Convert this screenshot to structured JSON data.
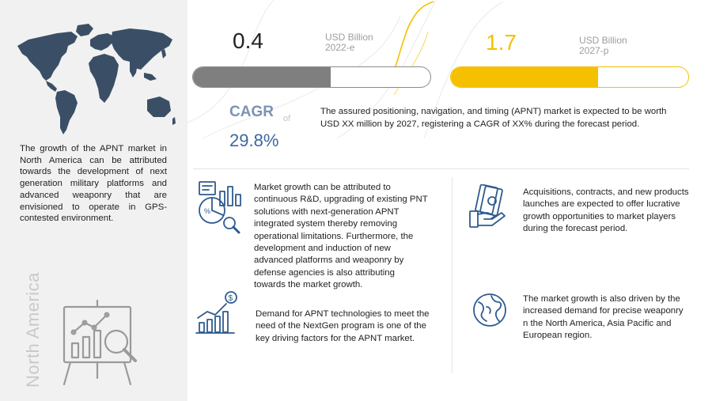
{
  "metrics": {
    "start": {
      "value": "0.4",
      "unit": "USD Billion",
      "year": "2022-e",
      "progress_fraction": 0.58
    },
    "end": {
      "value": "1.7",
      "unit": "USD Billion",
      "year": "2027-p",
      "progress_fraction": 0.62
    }
  },
  "cagr": {
    "label": "CAGR",
    "of": "of",
    "value": "29.8%"
  },
  "summary": "The assured positioning, navigation, and timing (APNT) market is expected to be worth USD XX million by 2027, registering a CAGR of XX% during the forecast period.",
  "region": {
    "name": "North America",
    "description": "The growth of the APNT market in North America can be attributed towards the development of next generation military platforms and advanced weaponry that are envisioned to operate in GPS-contested environment."
  },
  "drivers": [
    {
      "icon": "research-analysis-icon",
      "text": "Market growth can be attributed to continuous R&D, upgrading of existing PNT solutions with next-generation APNT integrated system thereby removing operational limitations. Furthermore, the development and induction of new advanced platforms and weaponry by defense agencies is also attributing towards the market growth."
    },
    {
      "icon": "growth-chart-icon",
      "text": "Demand for APNT technologies to meet the need of the NextGen program is one of the key driving factors for the APNT market."
    },
    {
      "icon": "money-hand-icon",
      "text": "Acquisitions, contracts, and new products launches are expected to offer lucrative growth opportunities to market players during the forecast period."
    },
    {
      "icon": "globe-icon",
      "text": "The market growth is also driven by the increased demand for precise weaponry n the North America, Asia Pacific and European region."
    }
  ],
  "colors": {
    "accent_yellow": "#f5c000",
    "bar_gray": "#7f7f7f",
    "cagr_blue": "#3d66a0",
    "icon_blue": "#2f5b8f",
    "panel_gray": "#f1f1f1"
  }
}
